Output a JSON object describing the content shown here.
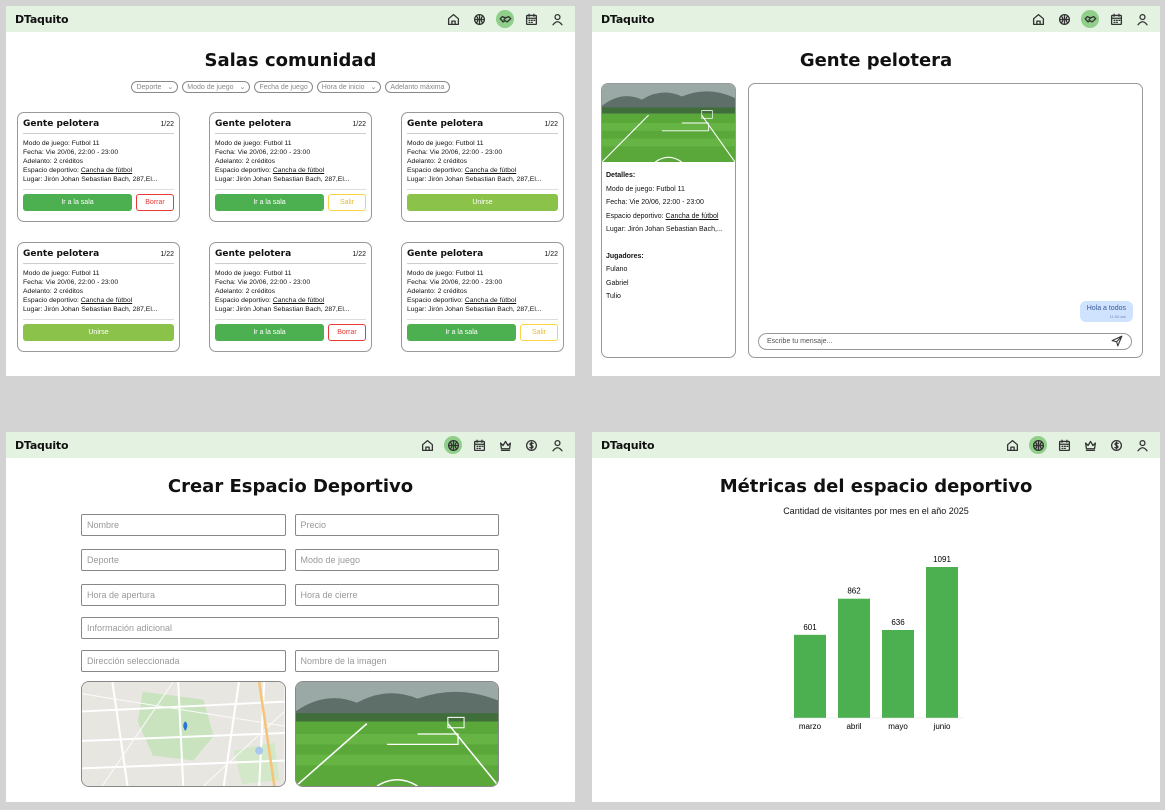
{
  "brand": "DTaquito",
  "salas": {
    "title": "Salas comunidad",
    "filters": [
      "Deporte",
      "Modo de juego",
      "Fecha de juego",
      "Hora de inicio",
      "Adelanto máxima"
    ],
    "cards": [
      {
        "name": "Gente pelotera",
        "count": "1/22",
        "modo": "Modo de juego: Futbol 11",
        "fecha": "Fecha: Vie 20/06, 22:00 - 23:00",
        "adelanto": "Adelanto: 2 créditos",
        "espacio_prefix": "Espacio deportivo: ",
        "espacio_link": "Cancha de fútbol",
        "lugar": "Lugar: Jirón Johan Sebastian Bach, 287,El...",
        "buttons": [
          {
            "label": "Ir a la sala",
            "kind": "go"
          },
          {
            "label": "Borrar",
            "kind": "del"
          }
        ]
      },
      {
        "name": "Gente pelotera",
        "count": "1/22",
        "modo": "Modo de juego: Futbol 11",
        "fecha": "Fecha: Vie 20/06, 22:00 - 23:00",
        "adelanto": "Adelanto: 2 créditos",
        "espacio_prefix": "Espacio deportivo: ",
        "espacio_link": "Cancha de fútbol",
        "lugar": "Lugar: Jirón Johan Sebastian Bach, 287,El...",
        "buttons": [
          {
            "label": "Ir a la sala",
            "kind": "go"
          },
          {
            "label": "Salir",
            "kind": "exit"
          }
        ]
      },
      {
        "name": "Gente pelotera",
        "count": "1/22",
        "modo": "Modo de juego: Futbol 11",
        "fecha": "Fecha: Vie 20/06, 22:00 - 23:00",
        "adelanto": "Adelanto: 2 créditos",
        "espacio_prefix": "Espacio deportivo: ",
        "espacio_link": "Cancha de fútbol",
        "lugar": "Lugar: Jirón Johan Sebastian Bach, 287,El...",
        "buttons": [
          {
            "label": "Unirse",
            "kind": "join"
          }
        ]
      },
      {
        "name": "Gente pelotera",
        "count": "1/22",
        "modo": "Modo de juego: Futbol 11",
        "fecha": "Fecha: Vie 20/06, 22:00 - 23:00",
        "adelanto": "Adelanto: 2 créditos",
        "espacio_prefix": "Espacio deportivo: ",
        "espacio_link": "Cancha de fútbol",
        "lugar": "Lugar: Jirón Johan Sebastian Bach, 287,El...",
        "buttons": [
          {
            "label": "Unirse",
            "kind": "join"
          }
        ]
      },
      {
        "name": "Gente pelotera",
        "count": "1/22",
        "modo": "Modo de juego: Futbol 11",
        "fecha": "Fecha: Vie 20/06, 22:00 - 23:00",
        "adelanto": "Adelanto: 2 créditos",
        "espacio_prefix": "Espacio deportivo: ",
        "espacio_link": "Cancha de fútbol",
        "lugar": "Lugar: Jirón Johan Sebastian Bach, 287,El...",
        "buttons": [
          {
            "label": "Ir a la sala",
            "kind": "go"
          },
          {
            "label": "Borrar",
            "kind": "del"
          }
        ]
      },
      {
        "name": "Gente pelotera",
        "count": "1/22",
        "modo": "Modo de juego: Futbol 11",
        "fecha": "Fecha: Vie 20/06, 22:00 - 23:00",
        "adelanto": "Adelanto: 2 créditos",
        "espacio_prefix": "Espacio deportivo: ",
        "espacio_link": "Cancha de fútbol",
        "lugar": "Lugar: Jirón Johan Sebastian Bach, 287,El...",
        "buttons": [
          {
            "label": "Ir a la sala",
            "kind": "go"
          },
          {
            "label": "Salir",
            "kind": "exit"
          }
        ]
      }
    ]
  },
  "sala": {
    "title": "Gente pelotera",
    "details_label": "Detalles:",
    "modo": "Modo de juego: Futbol 11",
    "fecha": "Fecha: Vie 20/06, 22:00 - 23:00",
    "espacio_prefix": "Espacio deportivo: ",
    "espacio_link": "Cancha de fútbol",
    "lugar": "Lugar: Jirón Johan Sebastian Bach,...",
    "players_label": "Jugadores:",
    "players": [
      "Fulano",
      "Gabriel",
      "Tulio"
    ],
    "message": "Hola a todos",
    "message_time": "11:00 am",
    "input_placeholder": "Escribe tu mensaje..."
  },
  "crear": {
    "title": "Crear Espacio Deportivo",
    "nombre": "Nombre",
    "precio": "Precio",
    "deporte": "Deporte",
    "modo": "Modo de juego",
    "apertura": "Hora de apertura",
    "cierre": "Hora de cierre",
    "info": "Información adicional",
    "direccion": "Dirección seleccionada",
    "imagen": "Nombre de la imagen"
  },
  "metricas": {
    "title": "Métricas del espacio deportivo"
  },
  "chart_data": {
    "type": "bar",
    "title": "Cantidad de visitantes por mes en el año 2025",
    "categories": [
      "marzo",
      "abril",
      "mayo",
      "junio"
    ],
    "values": [
      601,
      862,
      636,
      1091
    ],
    "color": "#4caf50",
    "ylim": [
      0,
      1091
    ],
    "grid": false
  },
  "colors": {
    "topbar": "#e3f2e1",
    "accent": "#4caf50",
    "join": "#8bc34a",
    "danger": "#e53935",
    "warning": "#f9d448"
  }
}
